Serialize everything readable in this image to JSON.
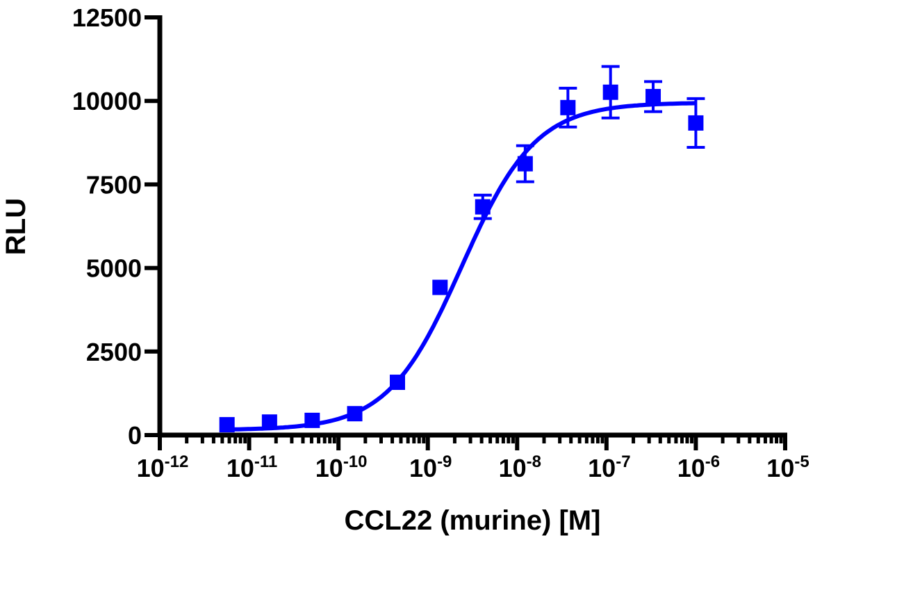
{
  "chart_data": {
    "type": "scatter",
    "xlabel": "CCL22 (murine) [M]",
    "ylabel": "RLU",
    "x_scale": "log",
    "xlim": [
      1e-12,
      1e-05
    ],
    "ylim": [
      0,
      12500
    ],
    "x_ticks": [
      {
        "base": "10",
        "exp": "-12"
      },
      {
        "base": "10",
        "exp": "-11"
      },
      {
        "base": "10",
        "exp": "-10"
      },
      {
        "base": "10",
        "exp": "-9"
      },
      {
        "base": "10",
        "exp": "-8"
      },
      {
        "base": "10",
        "exp": "-7"
      },
      {
        "base": "10",
        "exp": "-6"
      },
      {
        "base": "10",
        "exp": "-5"
      }
    ],
    "y_ticks": [
      "0",
      "2500",
      "5000",
      "7500",
      "10000",
      "12500"
    ],
    "grid": false,
    "color": "#0000ff",
    "points": [
      {
        "x": 5.65e-12,
        "y": 310,
        "err": 0
      },
      {
        "x": 1.69e-11,
        "y": 390,
        "err": 0
      },
      {
        "x": 5.08e-11,
        "y": 440,
        "err": 0
      },
      {
        "x": 1.52e-10,
        "y": 640,
        "err": 0
      },
      {
        "x": 4.57e-10,
        "y": 1580,
        "err": 0
      },
      {
        "x": 1.37e-09,
        "y": 4420,
        "err": 0
      },
      {
        "x": 4.12e-09,
        "y": 6830,
        "err": 350
      },
      {
        "x": 1.23e-08,
        "y": 8120,
        "err": 540
      },
      {
        "x": 3.7e-08,
        "y": 9800,
        "err": 580
      },
      {
        "x": 1.11e-07,
        "y": 10260,
        "err": 770
      },
      {
        "x": 3.33e-07,
        "y": 10130,
        "err": 450
      },
      {
        "x": 1e-06,
        "y": 9340,
        "err": 730
      }
    ],
    "fit": {
      "model": "4PL",
      "bottom": 150,
      "top": 9950,
      "logEC50": -8.62,
      "hill": 1.05
    }
  }
}
